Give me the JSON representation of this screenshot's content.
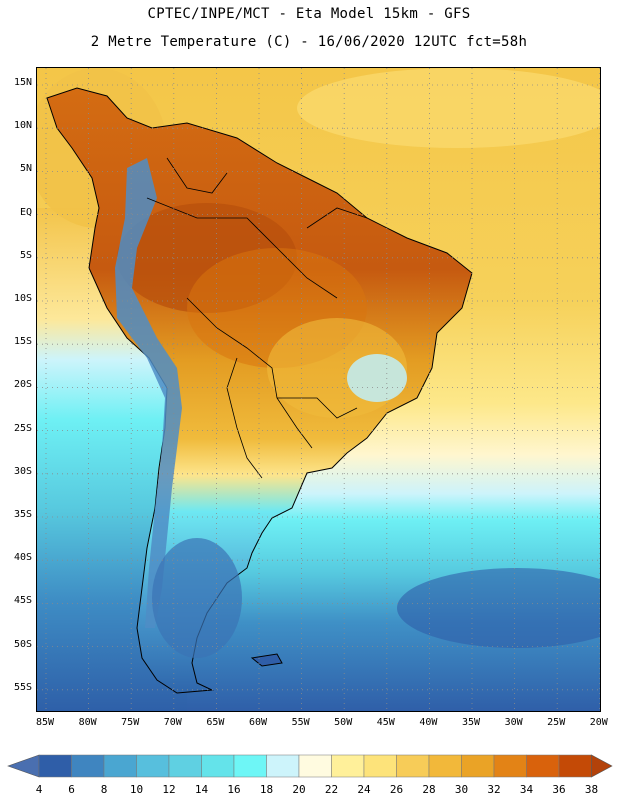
{
  "header": {
    "line1": "CPTEC/INPE/MCT -  Eta Model 15km - GFS",
    "line2": "2 Metre Temperature (C) - 16/06/2020 12UTC fct=58h"
  },
  "map": {
    "region": "South America",
    "lat_labels": [
      "15N",
      "10N",
      "5N",
      "EQ",
      "5S",
      "10S",
      "15S",
      "20S",
      "25S",
      "30S",
      "35S",
      "40S",
      "45S",
      "50S",
      "55S"
    ],
    "lon_labels": [
      "85W",
      "80W",
      "75W",
      "70W",
      "65W",
      "60W",
      "55W",
      "50W",
      "45W",
      "40W",
      "35W",
      "30W",
      "25W",
      "20W"
    ]
  },
  "legend": {
    "values": [
      "4",
      "6",
      "8",
      "10",
      "12",
      "14",
      "16",
      "18",
      "20",
      "22",
      "24",
      "26",
      "28",
      "30",
      "32",
      "34",
      "36",
      "38"
    ],
    "colors": [
      "#4a6fb0",
      "#2f5ea8",
      "#3f85c0",
      "#4aa6d1",
      "#57bfdd",
      "#5fd0e2",
      "#64e3ea",
      "#6ef6f6",
      "#cdf4fb",
      "#fffbe0",
      "#fff09a",
      "#fde37a",
      "#f7cc58",
      "#f2b83a",
      "#eaa326",
      "#e38316",
      "#d9620c",
      "#c44a06",
      "#b3420a"
    ]
  },
  "map_colors": {
    "ocean_warm": "#f4cd4c",
    "ocean_pale": "#fff0a0",
    "ocean_cool": "#5fd6e4",
    "ocean_cold": "#3c88c4",
    "ocean_coldest": "#2f63a8",
    "land_hot": "#c35b12",
    "land_warm": "#e6961c",
    "land_mild": "#f0b83a",
    "andes": "#4c86c0",
    "patagonia": "#3a74b6"
  }
}
